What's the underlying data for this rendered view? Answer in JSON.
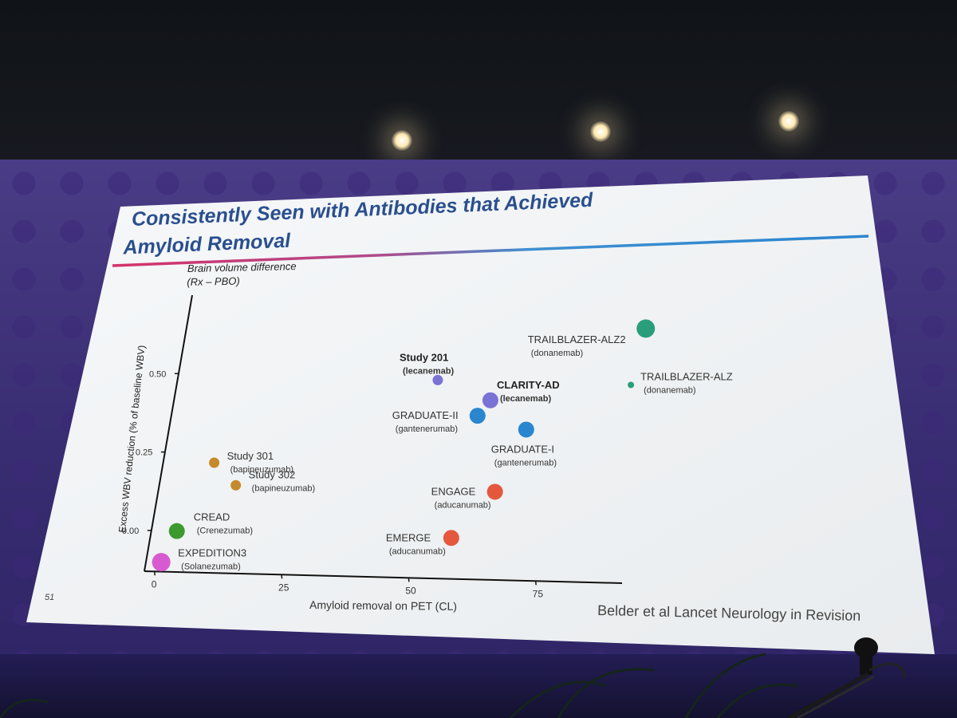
{
  "slide": {
    "title_line1": "Consistently Seen with Antibodies that Achieved",
    "title_line2": "Amyloid Removal",
    "page_number": "51",
    "citation": "Belder et al Lancet Neurology in Revision"
  },
  "chart_data": {
    "type": "scatter",
    "title": "Consistently Seen with Antibodies that Achieved Amyloid Removal",
    "ylabel_header_line1": "Brain volume difference",
    "ylabel_header_line2": "(Rx – PBO)",
    "ylabel": "Excess WBV reduction (% of baseline WBV)",
    "xlabel": "Amyloid removal on PET (CL)",
    "xticks": [
      0,
      25,
      50,
      75
    ],
    "xtick_labels": [
      "0",
      "25",
      "50",
      "75"
    ],
    "yticks": [
      0.0,
      0.25,
      0.5
    ],
    "ytick_labels": [
      "0.00",
      "0.25",
      "0.50"
    ],
    "xlim": [
      -2,
      92
    ],
    "ylim": [
      -0.13,
      0.75
    ],
    "points": [
      {
        "name": "TRAILBLAZER-ALZ2",
        "drug": "(donanemab)",
        "x": 88,
        "y": 0.68,
        "size": "large",
        "color": "#2a9e7a",
        "bold": false
      },
      {
        "name": "TRAILBLAZER-ALZ",
        "drug": "(donanemab)",
        "x": 87,
        "y": 0.5,
        "size": "tiny",
        "color": "#2a9e7a",
        "bold": false
      },
      {
        "name": "Study 201",
        "drug": "(lecanemab)",
        "x": 49,
        "y": 0.5,
        "size": "small",
        "color": "#7b72d6",
        "bold": true
      },
      {
        "name": "CLARITY-AD",
        "drug": "(lecanemab)",
        "x": 60,
        "y": 0.44,
        "size": "medium",
        "color": "#7b72d6",
        "bold": true
      },
      {
        "name": "GRADUATE-II",
        "drug": "(gantenerumab)",
        "x": 58,
        "y": 0.39,
        "size": "medium",
        "color": "#2a86cf",
        "bold": false
      },
      {
        "name": "GRADUATE-I",
        "drug": "(gantenerumab)",
        "x": 68,
        "y": 0.35,
        "size": "medium",
        "color": "#2a86cf",
        "bold": false
      },
      {
        "name": "Study 301",
        "drug": "(bapineuzumab)",
        "x": 8,
        "y": 0.22,
        "size": "small",
        "color": "#c58a2e",
        "bold": false
      },
      {
        "name": "Study 302",
        "drug": "(bapineuzumab)",
        "x": 13,
        "y": 0.15,
        "size": "small",
        "color": "#c58a2e",
        "bold": false
      },
      {
        "name": "ENGAGE",
        "drug": "(aducanumab)",
        "x": 64,
        "y": 0.15,
        "size": "medium",
        "color": "#e4583e",
        "bold": false
      },
      {
        "name": "EMERGE",
        "drug": "(aducanumab)",
        "x": 57,
        "y": 0.0,
        "size": "medium",
        "color": "#e4583e",
        "bold": false
      },
      {
        "name": "CREAD",
        "drug": "(Crenezumab)",
        "x": 3,
        "y": 0.0,
        "size": "medium",
        "color": "#3c9a2e",
        "bold": false
      },
      {
        "name": "EXPEDITION3",
        "drug": "(Solanezumab)",
        "x": 1,
        "y": -0.1,
        "size": "large",
        "color": "#d85ad0",
        "bold": false
      }
    ]
  }
}
